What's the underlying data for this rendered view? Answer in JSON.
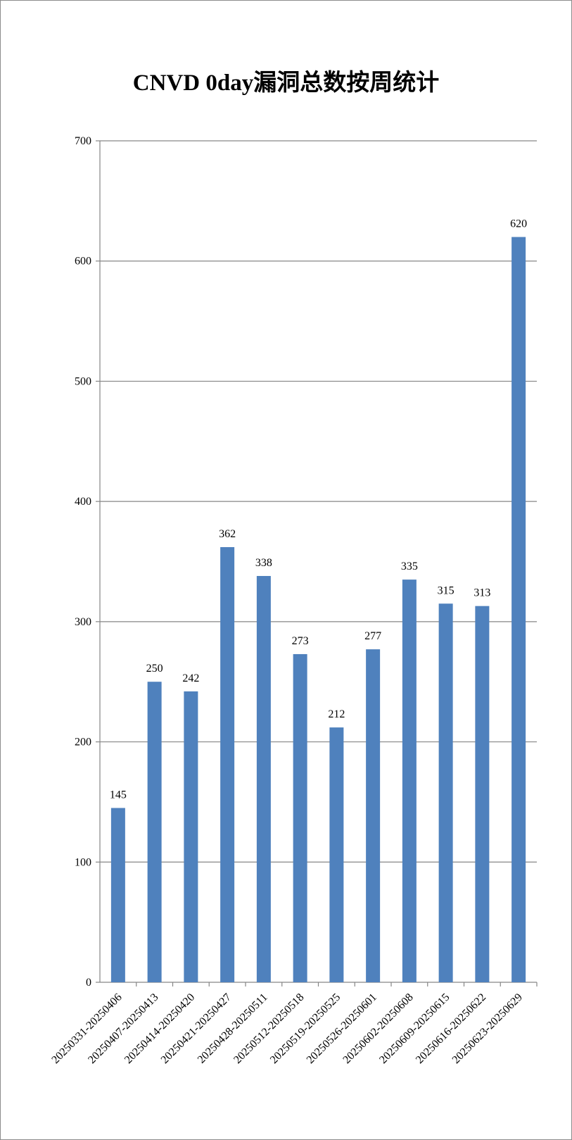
{
  "chart_data": {
    "type": "bar",
    "title": "CNVD 0day漏洞总数按周统计",
    "xlabel": "",
    "ylabel": "",
    "categories": [
      "20250331-20250406",
      "20250407-20250413",
      "20250414-20250420",
      "20250421-20250427",
      "20250428-20250511",
      "20250512-20250518",
      "20250519-20250525",
      "20250526-20250601",
      "20250602-20250608",
      "20250609-20250615",
      "20250616-20250622",
      "20250623-20250629"
    ],
    "values": [
      145,
      250,
      242,
      362,
      338,
      273,
      212,
      277,
      335,
      315,
      313,
      620
    ],
    "ylim": [
      0,
      700
    ],
    "yticks": [
      0,
      100,
      200,
      300,
      400,
      500,
      600,
      700
    ],
    "grid": true,
    "legend": "none",
    "bar_color": "#4f81bd",
    "gridline_color": "#868686",
    "frame_color": "#8c8c8c"
  }
}
